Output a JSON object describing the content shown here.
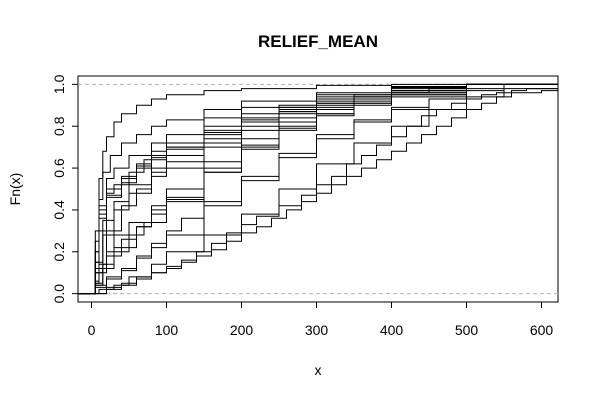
{
  "chart_data": {
    "type": "line",
    "step": true,
    "title": "RELIEF_MEAN",
    "xlabel": "x",
    "ylabel": "Fn(x)",
    "xlim": [
      -18,
      622
    ],
    "ylim": [
      -0.04,
      1.04
    ],
    "x_ticks": [
      0,
      100,
      200,
      300,
      400,
      500,
      600
    ],
    "x_tick_labels": [
      "0",
      "100",
      "200",
      "300",
      "400",
      "500",
      "600"
    ],
    "y_ticks": [
      0.0,
      0.2,
      0.4,
      0.6,
      0.8,
      1.0
    ],
    "y_tick_labels": [
      "0.0",
      "0.2",
      "0.4",
      "0.6",
      "0.8",
      "1.0"
    ],
    "reference_lines": [
      0,
      1
    ],
    "grid": false,
    "line_color": "#000000",
    "ref_line_color": "#b0b0b0",
    "series": [
      {
        "x": [
          0,
          5,
          10,
          15,
          20,
          30,
          40,
          60,
          80,
          100,
          150,
          200,
          300,
          400,
          500
        ],
        "y": [
          0,
          0.3,
          0.55,
          0.68,
          0.75,
          0.82,
          0.86,
          0.9,
          0.93,
          0.95,
          0.97,
          0.98,
          0.995,
          1,
          1
        ]
      },
      {
        "x": [
          0,
          5,
          10,
          15,
          25,
          40,
          60,
          80,
          100,
          150,
          200,
          300,
          400,
          500
        ],
        "y": [
          0,
          0.2,
          0.45,
          0.58,
          0.66,
          0.72,
          0.76,
          0.8,
          0.83,
          0.88,
          0.92,
          0.96,
          0.99,
          1
        ]
      },
      {
        "x": [
          0,
          5,
          10,
          20,
          30,
          50,
          80,
          100,
          150,
          200,
          300,
          400,
          500
        ],
        "y": [
          0,
          0.25,
          0.42,
          0.55,
          0.6,
          0.66,
          0.72,
          0.76,
          0.84,
          0.89,
          0.95,
          0.985,
          1
        ]
      },
      {
        "x": [
          0,
          5,
          10,
          20,
          40,
          60,
          80,
          100,
          150,
          200,
          250,
          300,
          400,
          500
        ],
        "y": [
          0,
          0.15,
          0.38,
          0.5,
          0.56,
          0.62,
          0.68,
          0.72,
          0.8,
          0.86,
          0.9,
          0.94,
          0.98,
          1
        ]
      },
      {
        "x": [
          0,
          5,
          10,
          20,
          30,
          50,
          70,
          100,
          150,
          200,
          250,
          300,
          400,
          500
        ],
        "y": [
          0,
          0.2,
          0.4,
          0.48,
          0.52,
          0.58,
          0.64,
          0.7,
          0.78,
          0.84,
          0.89,
          0.93,
          0.97,
          1
        ]
      },
      {
        "x": [
          0,
          5,
          10,
          20,
          40,
          60,
          80,
          100,
          150,
          200,
          250,
          300,
          350,
          400,
          500
        ],
        "y": [
          0,
          0.1,
          0.3,
          0.46,
          0.53,
          0.6,
          0.65,
          0.69,
          0.77,
          0.83,
          0.88,
          0.92,
          0.95,
          0.97,
          1
        ]
      },
      {
        "x": [
          0,
          5,
          10,
          20,
          40,
          60,
          80,
          100,
          150,
          200,
          250,
          300,
          350,
          400,
          500
        ],
        "y": [
          0,
          0.12,
          0.36,
          0.47,
          0.55,
          0.61,
          0.66,
          0.7,
          0.76,
          0.82,
          0.87,
          0.91,
          0.94,
          0.97,
          1
        ]
      },
      {
        "x": [
          0,
          5,
          15,
          30,
          50,
          80,
          100,
          150,
          200,
          250,
          300,
          350,
          400,
          500
        ],
        "y": [
          0,
          0.15,
          0.35,
          0.44,
          0.52,
          0.6,
          0.66,
          0.74,
          0.82,
          0.87,
          0.91,
          0.94,
          0.97,
          1
        ]
      },
      {
        "x": [
          0,
          5,
          15,
          30,
          50,
          80,
          100,
          150,
          200,
          250,
          300,
          350,
          400,
          450,
          550
        ],
        "y": [
          0,
          0.1,
          0.28,
          0.4,
          0.48,
          0.58,
          0.63,
          0.72,
          0.8,
          0.86,
          0.9,
          0.93,
          0.96,
          0.98,
          1
        ]
      },
      {
        "x": [
          0,
          5,
          20,
          40,
          60,
          80,
          100,
          150,
          200,
          250,
          300,
          350,
          400,
          500
        ],
        "y": [
          0,
          0.1,
          0.3,
          0.42,
          0.5,
          0.56,
          0.6,
          0.7,
          0.78,
          0.84,
          0.89,
          0.93,
          0.96,
          1
        ]
      },
      {
        "x": [
          0,
          5,
          10,
          20,
          30,
          50,
          80,
          100,
          150,
          200,
          250,
          300,
          350,
          400,
          500
        ],
        "y": [
          0,
          0.06,
          0.14,
          0.2,
          0.28,
          0.34,
          0.42,
          0.5,
          0.63,
          0.74,
          0.82,
          0.88,
          0.92,
          0.96,
          1
        ]
      },
      {
        "x": [
          0,
          5,
          10,
          20,
          40,
          60,
          80,
          100,
          150,
          200,
          250,
          300,
          350,
          400,
          500
        ],
        "y": [
          0,
          0.05,
          0.12,
          0.18,
          0.26,
          0.32,
          0.4,
          0.46,
          0.6,
          0.71,
          0.8,
          0.86,
          0.91,
          0.95,
          1
        ]
      },
      {
        "x": [
          0,
          5,
          15,
          30,
          50,
          70,
          100,
          150,
          200,
          250,
          300,
          350,
          400,
          500
        ],
        "y": [
          0,
          0.05,
          0.12,
          0.2,
          0.28,
          0.34,
          0.44,
          0.58,
          0.7,
          0.79,
          0.86,
          0.91,
          0.95,
          1
        ]
      },
      {
        "x": [
          0,
          5,
          15,
          30,
          60,
          80,
          100,
          150,
          200,
          250,
          300,
          350,
          400,
          500
        ],
        "y": [
          0,
          0.04,
          0.14,
          0.22,
          0.32,
          0.38,
          0.45,
          0.58,
          0.69,
          0.78,
          0.85,
          0.9,
          0.94,
          1
        ]
      },
      {
        "x": [
          0,
          5,
          20,
          40,
          60,
          80,
          100,
          120,
          150,
          200,
          250,
          300,
          350,
          400,
          450,
          500,
          550
        ],
        "y": [
          0,
          0.04,
          0.08,
          0.12,
          0.18,
          0.24,
          0.3,
          0.36,
          0.44,
          0.56,
          0.67,
          0.76,
          0.83,
          0.89,
          0.93,
          0.97,
          1
        ]
      },
      {
        "x": [
          0,
          5,
          20,
          40,
          60,
          80,
          100,
          150,
          200,
          250,
          300,
          350,
          400,
          450,
          500
        ],
        "y": [
          0,
          0.03,
          0.07,
          0.11,
          0.17,
          0.22,
          0.28,
          0.42,
          0.54,
          0.65,
          0.74,
          0.82,
          0.88,
          0.93,
          1
        ]
      },
      {
        "x": [
          0,
          10,
          30,
          50,
          80,
          100,
          150,
          200,
          250,
          300,
          350,
          400,
          450,
          500,
          550
        ],
        "y": [
          0,
          0.02,
          0.04,
          0.08,
          0.14,
          0.2,
          0.28,
          0.38,
          0.5,
          0.62,
          0.72,
          0.8,
          0.88,
          0.94,
          0.98
        ]
      },
      {
        "x": [
          0,
          20,
          40,
          60,
          80,
          100,
          120,
          140,
          160,
          180,
          200,
          220,
          250,
          280,
          300,
          320,
          340,
          360,
          380,
          400,
          420,
          440,
          460,
          480,
          500,
          520,
          540,
          560,
          580
        ],
        "y": [
          0,
          0.03,
          0.05,
          0.08,
          0.1,
          0.13,
          0.16,
          0.2,
          0.24,
          0.29,
          0.33,
          0.37,
          0.42,
          0.47,
          0.52,
          0.56,
          0.62,
          0.66,
          0.71,
          0.75,
          0.8,
          0.85,
          0.88,
          0.91,
          0.93,
          0.95,
          0.96,
          0.97,
          0.98
        ]
      },
      {
        "x": [
          0,
          20,
          40,
          60,
          80,
          100,
          120,
          140,
          160,
          180,
          200,
          220,
          240,
          260,
          280,
          300,
          320,
          340,
          360,
          380,
          400,
          420,
          440,
          460,
          480,
          500,
          520,
          540,
          560,
          600
        ],
        "y": [
          0,
          0.02,
          0.04,
          0.07,
          0.1,
          0.12,
          0.15,
          0.18,
          0.21,
          0.25,
          0.29,
          0.32,
          0.36,
          0.4,
          0.44,
          0.48,
          0.52,
          0.56,
          0.6,
          0.64,
          0.68,
          0.72,
          0.76,
          0.8,
          0.84,
          0.88,
          0.91,
          0.94,
          0.96,
          0.97
        ]
      }
    ]
  }
}
